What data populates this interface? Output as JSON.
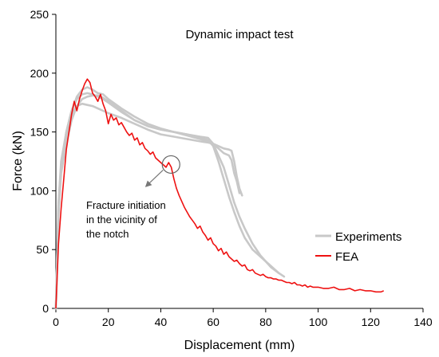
{
  "chart_data": {
    "type": "line",
    "title": "Dynamic impact test",
    "xlabel": "Displacement (mm)",
    "ylabel": "Force (kN)",
    "xlim": [
      0,
      140
    ],
    "ylim": [
      0,
      250
    ],
    "xticks": [
      "0",
      "20",
      "40",
      "60",
      "80",
      "100",
      "120",
      "140"
    ],
    "yticks": [
      "0",
      "50",
      "100",
      "150",
      "200",
      "250"
    ],
    "grid": false,
    "legend_position": "right",
    "colors": {
      "experiments": "#c8c8c8",
      "fea": "#ee1111",
      "axis": "#000000",
      "annotation": "#777777"
    },
    "annotation": {
      "lines": [
        "Fracture initiation",
        "in the vicinity of",
        "the notch"
      ],
      "point": [
        43,
        123
      ]
    },
    "series": [
      {
        "name": "Experiments",
        "values": [
          [
            [
              0,
              0
            ],
            [
              1,
              80
            ],
            [
              2,
              115
            ],
            [
              4,
              140
            ],
            [
              6,
              160
            ],
            [
              8,
              172
            ],
            [
              10,
              178
            ],
            [
              12,
              180
            ],
            [
              14,
              181
            ],
            [
              16,
              181
            ],
            [
              18,
              179
            ],
            [
              20,
              176
            ],
            [
              25,
              168
            ],
            [
              30,
              160
            ],
            [
              35,
              155
            ],
            [
              40,
              152
            ],
            [
              45,
              150
            ],
            [
              50,
              148
            ],
            [
              55,
              146
            ],
            [
              58,
              145
            ],
            [
              60,
              140
            ],
            [
              62,
              130
            ],
            [
              64,
              120
            ],
            [
              66,
              105
            ],
            [
              68,
              90
            ],
            [
              70,
              78
            ],
            [
              72,
              68
            ],
            [
              75,
              55
            ],
            [
              78,
              45
            ],
            [
              80,
              40
            ],
            [
              82,
              35
            ],
            [
              85,
              30
            ],
            [
              87,
              27
            ]
          ],
          [
            [
              0,
              0
            ],
            [
              1,
              90
            ],
            [
              2,
              125
            ],
            [
              4,
              150
            ],
            [
              6,
              168
            ],
            [
              8,
              180
            ],
            [
              10,
              186
            ],
            [
              12,
              188
            ],
            [
              14,
              186
            ],
            [
              16,
              183
            ],
            [
              18,
              182
            ],
            [
              20,
              178
            ],
            [
              25,
              170
            ],
            [
              30,
              163
            ],
            [
              35,
              157
            ],
            [
              40,
              153
            ],
            [
              45,
              150
            ],
            [
              50,
              148
            ],
            [
              55,
              145
            ],
            [
              58,
              143
            ],
            [
              60,
              138
            ],
            [
              62,
              125
            ],
            [
              64,
              110
            ],
            [
              66,
              95
            ],
            [
              68,
              82
            ],
            [
              70,
              70
            ],
            [
              72,
              60
            ],
            [
              75,
              50
            ],
            [
              80,
              40
            ],
            [
              85,
              30
            ]
          ],
          [
            [
              0,
              0
            ],
            [
              1,
              85
            ],
            [
              2,
              120
            ],
            [
              4,
              148
            ],
            [
              6,
              165
            ],
            [
              8,
              172
            ],
            [
              10,
              174
            ],
            [
              12,
              173
            ],
            [
              14,
              172
            ],
            [
              16,
              170
            ],
            [
              18,
              168
            ],
            [
              20,
              166
            ],
            [
              25,
              162
            ],
            [
              30,
              157
            ],
            [
              35,
              152
            ],
            [
              40,
              148
            ],
            [
              45,
              146
            ],
            [
              50,
              144
            ],
            [
              55,
              142
            ],
            [
              58,
              141
            ],
            [
              60,
              140
            ],
            [
              62,
              138
            ],
            [
              64,
              136
            ],
            [
              66,
              135
            ],
            [
              67,
              134
            ],
            [
              68,
              125
            ],
            [
              69,
              112
            ],
            [
              70,
              102
            ],
            [
              71,
              96
            ]
          ],
          [
            [
              0,
              0
            ],
            [
              1,
              88
            ],
            [
              2,
              122
            ],
            [
              4,
              150
            ],
            [
              6,
              168
            ],
            [
              8,
              178
            ],
            [
              10,
              182
            ],
            [
              12,
              183
            ],
            [
              14,
              182
            ],
            [
              16,
              180
            ],
            [
              18,
              178
            ],
            [
              20,
              175
            ],
            [
              25,
              167
            ],
            [
              30,
              160
            ],
            [
              35,
              155
            ],
            [
              40,
              152
            ],
            [
              45,
              150
            ],
            [
              50,
              147
            ],
            [
              55,
              144
            ],
            [
              58,
              142
            ],
            [
              60,
              140
            ],
            [
              62,
              136
            ],
            [
              64,
              132
            ],
            [
              66,
              130
            ],
            [
              67,
              126
            ],
            [
              68,
              115
            ],
            [
              69,
              108
            ],
            [
              70,
              98
            ]
          ]
        ]
      },
      {
        "name": "FEA",
        "values": [
          [
            0,
            0
          ],
          [
            1,
            55
          ],
          [
            2,
            85
          ],
          [
            3,
            110
          ],
          [
            4,
            135
          ],
          [
            5,
            150
          ],
          [
            6,
            165
          ],
          [
            7,
            176
          ],
          [
            8,
            168
          ],
          [
            9,
            178
          ],
          [
            10,
            185
          ],
          [
            11,
            191
          ],
          [
            12,
            195
          ],
          [
            13,
            192
          ],
          [
            14,
            183
          ],
          [
            15,
            180
          ],
          [
            16,
            176
          ],
          [
            17,
            182
          ],
          [
            18,
            174
          ],
          [
            19,
            168
          ],
          [
            20,
            157
          ],
          [
            21,
            165
          ],
          [
            22,
            160
          ],
          [
            23,
            162
          ],
          [
            24,
            156
          ],
          [
            25,
            158
          ],
          [
            26,
            154
          ],
          [
            27,
            150
          ],
          [
            28,
            147
          ],
          [
            29,
            149
          ],
          [
            30,
            143
          ],
          [
            31,
            145
          ],
          [
            32,
            139
          ],
          [
            33,
            141
          ],
          [
            34,
            136
          ],
          [
            35,
            134
          ],
          [
            36,
            131
          ],
          [
            37,
            133
          ],
          [
            38,
            128
          ],
          [
            39,
            126
          ],
          [
            40,
            124
          ],
          [
            41,
            122
          ],
          [
            42,
            120
          ],
          [
            43,
            124
          ],
          [
            44,
            120
          ],
          [
            45,
            110
          ],
          [
            46,
            102
          ],
          [
            47,
            96
          ],
          [
            48,
            91
          ],
          [
            49,
            86
          ],
          [
            50,
            82
          ],
          [
            51,
            78
          ],
          [
            52,
            75
          ],
          [
            53,
            72
          ],
          [
            54,
            68
          ],
          [
            55,
            70
          ],
          [
            56,
            65
          ],
          [
            57,
            62
          ],
          [
            58,
            58
          ],
          [
            59,
            60
          ],
          [
            60,
            55
          ],
          [
            61,
            53
          ],
          [
            62,
            49
          ],
          [
            63,
            51
          ],
          [
            64,
            46
          ],
          [
            65,
            48
          ],
          [
            66,
            44
          ],
          [
            67,
            42
          ],
          [
            68,
            40
          ],
          [
            69,
            41
          ],
          [
            70,
            38
          ],
          [
            71,
            36
          ],
          [
            72,
            37
          ],
          [
            73,
            33
          ],
          [
            74,
            32
          ],
          [
            75,
            33
          ],
          [
            76,
            30
          ],
          [
            77,
            29
          ],
          [
            78,
            28
          ],
          [
            79,
            29
          ],
          [
            80,
            27
          ],
          [
            81,
            26
          ],
          [
            82,
            26
          ],
          [
            83,
            25
          ],
          [
            84,
            25
          ],
          [
            85,
            24
          ],
          [
            86,
            24
          ],
          [
            87,
            23
          ],
          [
            88,
            22
          ],
          [
            89,
            22
          ],
          [
            90,
            21
          ],
          [
            91,
            22
          ],
          [
            92,
            20
          ],
          [
            93,
            20
          ],
          [
            94,
            19
          ],
          [
            95,
            20
          ],
          [
            96,
            18
          ],
          [
            97,
            19
          ],
          [
            98,
            18
          ],
          [
            99,
            18
          ],
          [
            100,
            18
          ],
          [
            102,
            17
          ],
          [
            104,
            17
          ],
          [
            106,
            18
          ],
          [
            108,
            16
          ],
          [
            110,
            16
          ],
          [
            112,
            17
          ],
          [
            114,
            15
          ],
          [
            116,
            16
          ],
          [
            118,
            15
          ],
          [
            120,
            15
          ],
          [
            122,
            14
          ],
          [
            124,
            14
          ],
          [
            125,
            15
          ]
        ]
      }
    ]
  }
}
